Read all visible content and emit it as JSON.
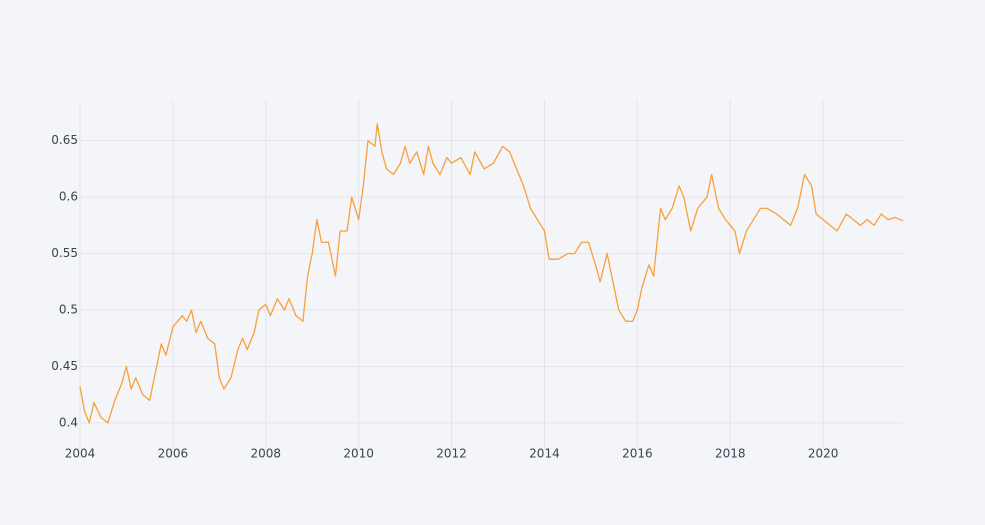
{
  "chart_data": {
    "type": "line",
    "x": [
      2004.0,
      2004.1,
      2004.2,
      2004.3,
      2004.45,
      2004.6,
      2004.75,
      2004.9,
      2005.0,
      2005.1,
      2005.2,
      2005.35,
      2005.5,
      2005.6,
      2005.75,
      2005.85,
      2006.0,
      2006.1,
      2006.2,
      2006.3,
      2006.4,
      2006.5,
      2006.6,
      2006.75,
      2006.9,
      2007.0,
      2007.1,
      2007.25,
      2007.4,
      2007.5,
      2007.6,
      2007.75,
      2007.85,
      2008.0,
      2008.1,
      2008.25,
      2008.4,
      2008.5,
      2008.65,
      2008.8,
      2008.9,
      2009.0,
      2009.1,
      2009.2,
      2009.35,
      2009.5,
      2009.6,
      2009.75,
      2009.85,
      2010.0,
      2010.1,
      2010.2,
      2010.35,
      2010.4,
      2010.5,
      2010.6,
      2010.75,
      2010.9,
      2011.0,
      2011.1,
      2011.25,
      2011.4,
      2011.5,
      2011.6,
      2011.75,
      2011.9,
      2012.0,
      2012.2,
      2012.4,
      2012.5,
      2012.7,
      2012.9,
      2013.1,
      2013.25,
      2013.4,
      2013.55,
      2013.7,
      2013.85,
      2014.0,
      2014.1,
      2014.3,
      2014.5,
      2014.65,
      2014.8,
      2014.95,
      2015.1,
      2015.2,
      2015.35,
      2015.5,
      2015.6,
      2015.75,
      2015.9,
      2016.0,
      2016.1,
      2016.25,
      2016.35,
      2016.5,
      2016.6,
      2016.75,
      2016.9,
      2017.0,
      2017.15,
      2017.3,
      2017.5,
      2017.6,
      2017.75,
      2017.9,
      2018.1,
      2018.2,
      2018.35,
      2018.5,
      2018.65,
      2018.8,
      2019.0,
      2019.15,
      2019.3,
      2019.45,
      2019.6,
      2019.75,
      2019.85,
      2020.0,
      2020.15,
      2020.3,
      2020.5,
      2020.65,
      2020.8,
      2020.95,
      2021.1,
      2021.25,
      2021.4,
      2021.55,
      2021.72
    ],
    "values": [
      0.432,
      0.41,
      0.4,
      0.418,
      0.405,
      0.4,
      0.42,
      0.435,
      0.45,
      0.43,
      0.44,
      0.425,
      0.42,
      0.44,
      0.47,
      0.46,
      0.485,
      0.49,
      0.495,
      0.49,
      0.5,
      0.48,
      0.49,
      0.475,
      0.47,
      0.44,
      0.43,
      0.44,
      0.465,
      0.475,
      0.465,
      0.48,
      0.5,
      0.505,
      0.495,
      0.51,
      0.5,
      0.51,
      0.495,
      0.49,
      0.53,
      0.55,
      0.58,
      0.56,
      0.56,
      0.53,
      0.57,
      0.57,
      0.6,
      0.58,
      0.61,
      0.65,
      0.645,
      0.665,
      0.64,
      0.625,
      0.62,
      0.63,
      0.645,
      0.63,
      0.64,
      0.62,
      0.645,
      0.63,
      0.62,
      0.635,
      0.63,
      0.635,
      0.62,
      0.64,
      0.625,
      0.63,
      0.645,
      0.64,
      0.625,
      0.61,
      0.59,
      0.58,
      0.57,
      0.545,
      0.545,
      0.55,
      0.55,
      0.56,
      0.56,
      0.54,
      0.525,
      0.55,
      0.52,
      0.5,
      0.49,
      0.49,
      0.5,
      0.52,
      0.54,
      0.53,
      0.59,
      0.58,
      0.59,
      0.61,
      0.6,
      0.57,
      0.59,
      0.6,
      0.62,
      0.59,
      0.58,
      0.57,
      0.55,
      0.57,
      0.58,
      0.59,
      0.59,
      0.585,
      0.58,
      0.575,
      0.59,
      0.62,
      0.61,
      0.585,
      0.58,
      0.575,
      0.57,
      0.585,
      0.58,
      0.575,
      0.58,
      0.575,
      0.585,
      0.58,
      0.582,
      0.579
    ],
    "color": "#f7a03c",
    "xlim": [
      2004,
      2021.72
    ],
    "xticks": [
      2004,
      2006,
      2008,
      2010,
      2012,
      2014,
      2016,
      2018,
      2020
    ],
    "ylim": [
      0.376,
      0.686
    ],
    "yticks": [
      0.4,
      0.45,
      0.5,
      0.55,
      0.6,
      0.65
    ],
    "grid": true
  }
}
